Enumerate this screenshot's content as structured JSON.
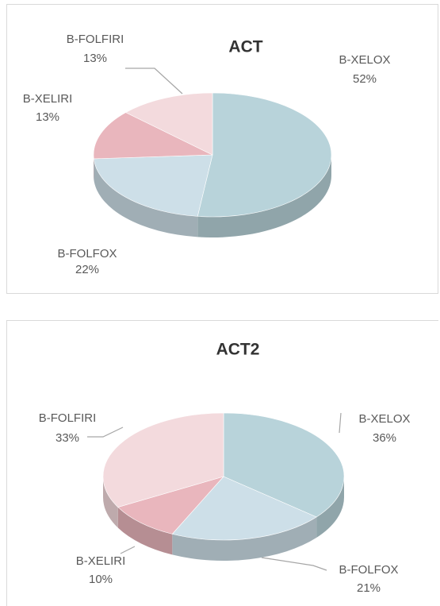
{
  "chart_data": [
    {
      "type": "pie3d",
      "title": "ACT",
      "categories": [
        "B-XELOX",
        "B-FOLFOX",
        "B-XELIRI",
        "B-FOLFIRI"
      ],
      "values": [
        52,
        22,
        13,
        13
      ],
      "value_labels": [
        "52%",
        "22%",
        "13%",
        "13%"
      ],
      "colors": [
        "#b8d3da",
        "#cddfe8",
        "#e9b6bd",
        "#f3dadd"
      ]
    },
    {
      "type": "pie3d",
      "title": "ACT2",
      "categories": [
        "B-XELOX",
        "B-FOLFOX",
        "B-XELIRI",
        "B-FOLFIRI"
      ],
      "values": [
        36,
        21,
        10,
        33
      ],
      "value_labels": [
        "36%",
        "21%",
        "10%",
        "33%"
      ],
      "colors": [
        "#b8d3da",
        "#cddfe8",
        "#e9b6bd",
        "#f3dadd"
      ]
    }
  ]
}
